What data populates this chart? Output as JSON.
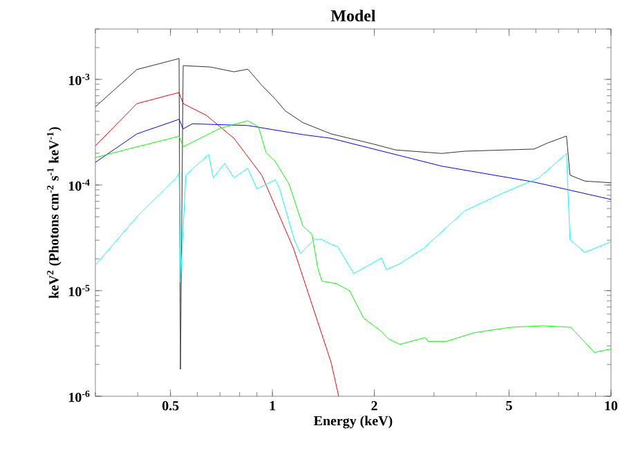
{
  "chart_data": {
    "type": "line",
    "title": "Model",
    "xlabel": "Energy (keV)",
    "ylabel": "keV$^{2}$ (Photons cm$^{-2}$ s$^{-1}$ keV$^{-1}$)",
    "log": "xy",
    "xlim": [
      0.3,
      10
    ],
    "ylim": [
      1e-06,
      0.003
    ],
    "xticks": [
      0.5,
      1,
      2,
      5,
      10
    ],
    "yticks": [
      {
        "value": 1e-06,
        "label": "10$^{-6}$"
      },
      {
        "value": 1e-05,
        "label": "10$^{-5}$"
      },
      {
        "value": 0.0001,
        "label": "10$^{-4}$"
      },
      {
        "value": 0.001,
        "label": "10$^{-3}$"
      }
    ],
    "series": [
      {
        "color": "#303030",
        "x": [
          0.3,
          0.398,
          0.52,
          0.53,
          0.535,
          0.545,
          0.656,
          0.77,
          0.846,
          0.93,
          1.02,
          1.09,
          1.23,
          1.49,
          1.98,
          2.31,
          3.16,
          3.7,
          5.93,
          6.5,
          7.39,
          7.57,
          8.37,
          10
        ],
        "values": [
          0.00055,
          0.00124,
          0.00155,
          0.00158,
          1.8e-06,
          0.00135,
          0.00131,
          0.00118,
          0.00125,
          0.00088,
          0.00065,
          0.000505,
          0.00039,
          0.000305,
          0.000245,
          0.000215,
          0.000199,
          0.000209,
          0.000219,
          0.00025,
          0.000291,
          0.000124,
          0.000109,
          0.000105
        ]
      },
      {
        "color": "#ff0000",
        "x": [
          0.3,
          0.398,
          0.52,
          0.53,
          0.545,
          0.638,
          0.77,
          0.93,
          1.155,
          1.49,
          1.57
        ],
        "values": [
          0.000235,
          0.00059,
          0.00074,
          0.00075,
          0.00059,
          0.000457,
          0.000277,
          0.000124,
          2.5e-05,
          2.1e-06,
          1e-06
        ]
      },
      {
        "color": "#0000ff",
        "x": [
          0.3,
          0.398,
          0.52,
          0.53,
          0.545,
          0.58,
          0.846,
          1.23,
          1.49,
          3.16,
          5.9,
          10
        ],
        "values": [
          0.000164,
          0.000305,
          0.00041,
          0.00042,
          0.00034,
          0.00038,
          0.000366,
          0.0003,
          0.000277,
          0.000151,
          0.000107,
          7.3e-05
        ]
      },
      {
        "color": "#00ff00",
        "x": [
          0.3,
          0.398,
          0.52,
          0.53,
          0.545,
          0.7,
          0.846,
          0.91,
          0.957,
          1.02,
          1.12,
          1.23,
          1.31,
          1.36,
          1.4,
          1.54,
          1.69,
          1.86,
          2.1,
          2.2,
          2.38,
          2.83,
          2.88,
          3.26,
          3.94,
          5.06,
          6.31,
          7.6,
          8.0,
          8.93,
          10
        ],
        "values": [
          0.000182,
          0.00023,
          0.000285,
          0.00029,
          0.00023,
          0.000344,
          0.000406,
          0.000355,
          0.000205,
          0.000167,
          0.000102,
          4.1e-05,
          3.4e-05,
          1.66e-05,
          1.23e-05,
          1.17e-05,
          1e-05,
          5.5e-06,
          4.1e-06,
          3.5e-06,
          3.1e-06,
          3.6e-06,
          3.3e-06,
          3.3e-06,
          4e-06,
          4.5e-06,
          4.65e-06,
          4.5e-06,
          3.8e-06,
          2.6e-06,
          2.8e-06
        ]
      },
      {
        "color": "#00ffff",
        "x": [
          0.3,
          0.398,
          0.52,
          0.53,
          0.535,
          0.555,
          0.648,
          0.669,
          0.723,
          0.77,
          0.846,
          0.9,
          1.02,
          1.05,
          1.16,
          1.21,
          1.33,
          1.4,
          1.49,
          1.56,
          1.74,
          2.1,
          2.17,
          2.38,
          2.79,
          3.7,
          4.76,
          6.13,
          7.39,
          7.57,
          8.37,
          10
        ],
        "values": [
          1.74e-05,
          5e-05,
          0.000117,
          0.00013,
          1.2e-05,
          0.000124,
          0.000195,
          0.000117,
          0.00016,
          0.000117,
          0.000144,
          9.2e-05,
          0.000112,
          9.2e-05,
          3.05e-05,
          2.25e-05,
          3.05e-05,
          3.05e-05,
          2.75e-05,
          2.6e-05,
          1.45e-05,
          2.04e-05,
          1.58e-05,
          1.8e-05,
          2.5e-05,
          5.7e-05,
          8.3e-05,
          0.000117,
          0.000199,
          3.05e-05,
          2.3e-05,
          2.9e-05
        ]
      }
    ]
  }
}
